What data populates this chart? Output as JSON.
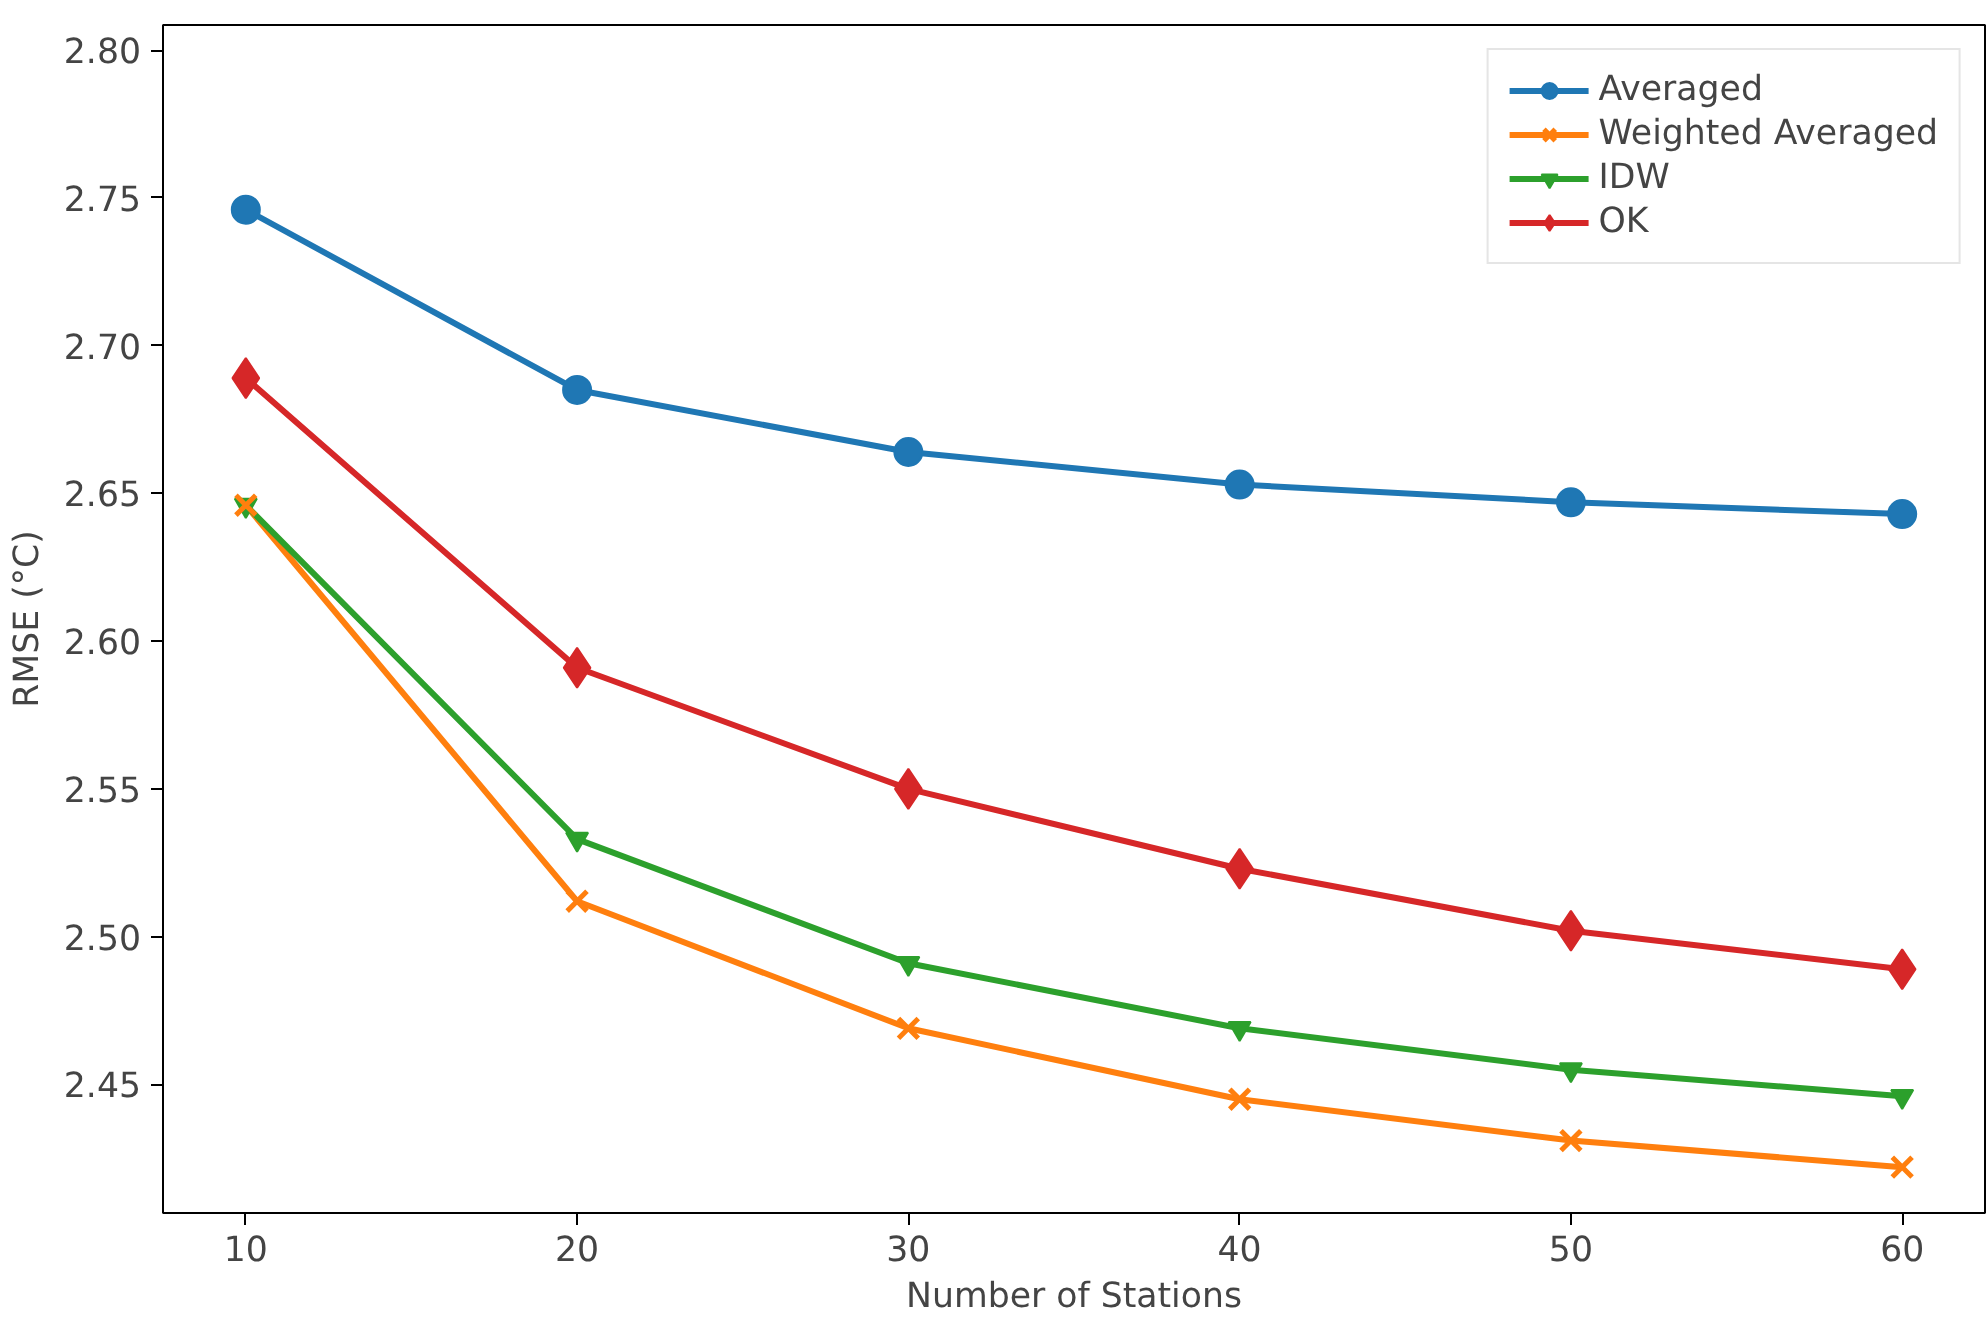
{
  "chart_data": {
    "type": "line",
    "xlabel": "Number of Stations",
    "ylabel": "RMSE (°C)",
    "x": [
      10,
      20,
      30,
      40,
      50,
      60
    ],
    "series": [
      {
        "name": "Averaged",
        "color": "#1f77b4",
        "marker": "circle",
        "values": [
          2.746,
          2.685,
          2.664,
          2.653,
          2.647,
          2.643
        ]
      },
      {
        "name": "Weighted Averaged",
        "color": "#ff7f0e",
        "marker": "cross",
        "values": [
          2.646,
          2.512,
          2.469,
          2.445,
          2.431,
          2.422
        ]
      },
      {
        "name": "IDW",
        "color": "#2ca02c",
        "marker": "triangle",
        "values": [
          2.646,
          2.533,
          2.491,
          2.469,
          2.455,
          2.446
        ]
      },
      {
        "name": "OK",
        "color": "#d62728",
        "marker": "diamond",
        "values": [
          2.689,
          2.591,
          2.55,
          2.523,
          2.502,
          2.489
        ]
      }
    ],
    "xlim": [
      7.5,
      62.5
    ],
    "ylim": [
      2.4065,
      2.8085
    ],
    "xticks": [
      10,
      20,
      30,
      40,
      50,
      60
    ],
    "yticks": [
      {
        "value": 2.45,
        "label": "2.45"
      },
      {
        "value": 2.5,
        "label": "2.50"
      },
      {
        "value": 2.55,
        "label": "2.55"
      },
      {
        "value": 2.6,
        "label": "2.60"
      },
      {
        "value": 2.65,
        "label": "2.65"
      },
      {
        "value": 2.7,
        "label": "2.70"
      },
      {
        "value": 2.75,
        "label": "2.75"
      },
      {
        "value": 2.8,
        "label": "2.80"
      }
    ],
    "grid": false,
    "legend": "top right",
    "line_style": "solid"
  }
}
